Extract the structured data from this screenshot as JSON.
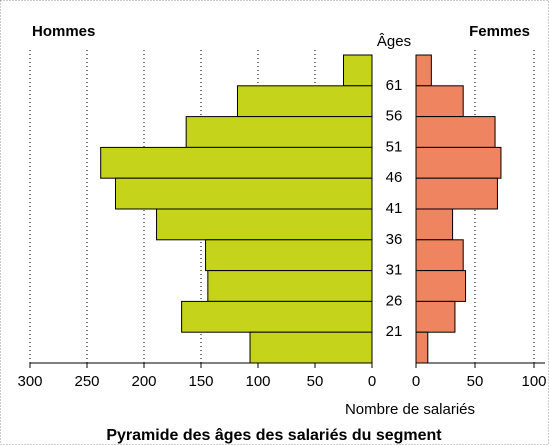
{
  "chart_data": {
    "type": "pyramid",
    "title": "Pyramide des âges des salariés du segment",
    "xlabel": "Nombre de salariés",
    "ylabel": "Âges",
    "ylim": [
      16,
      66
    ],
    "yticks": [
      61,
      56,
      51,
      46,
      41,
      36,
      31,
      26,
      21
    ],
    "grid": true,
    "series": [
      {
        "name": "Hommes",
        "color": "#c5d41a",
        "side": "left",
        "xlim": [
          0,
          300
        ],
        "xticks": [
          300,
          250,
          200,
          150,
          100,
          50,
          0
        ],
        "values": [
          25,
          118,
          163,
          238,
          225,
          189,
          146,
          144,
          167,
          107
        ]
      },
      {
        "name": "Femmes",
        "color": "#ef8560",
        "side": "right",
        "xlim": [
          0,
          100
        ],
        "xticks": [
          0,
          50,
          100
        ],
        "values": [
          13,
          40,
          67,
          72,
          69,
          31,
          40,
          42,
          33,
          10
        ]
      }
    ]
  }
}
